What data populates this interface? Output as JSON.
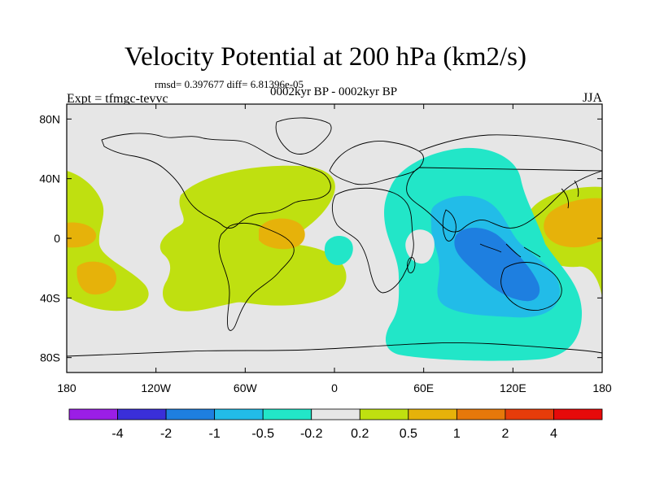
{
  "header": {
    "title": "Velocity Potential at 200 hPa (km2/s)",
    "stats": "rmsd= 0.397677 diff= 6.81396e-05",
    "left_label": "Expt = tfmgc-tevvc",
    "center_label": "0002kyr BP - 0002kyr BP",
    "right_label": "JJA"
  },
  "axes": {
    "x_ticks": [
      "180",
      "120W",
      "60W",
      "0",
      "60E",
      "120E",
      "180"
    ],
    "x_values": [
      -180,
      -120,
      -60,
      0,
      60,
      120,
      180
    ],
    "y_ticks": [
      "80N",
      "40N",
      "0",
      "40S",
      "80S"
    ],
    "y_values": [
      80,
      40,
      0,
      -40,
      -80
    ],
    "lon_range": [
      -180,
      180
    ],
    "lat_range": [
      -90,
      90
    ]
  },
  "colorbar": {
    "labels": [
      "-4",
      "-2",
      "-1",
      "-0.5",
      "-0.2",
      "0.2",
      "0.5",
      "1",
      "2",
      "4"
    ],
    "colors": [
      "#9b1ee6",
      "#3a2fd9",
      "#1e7fe0",
      "#22bce8",
      "#22e6c8",
      "#e6e6e6",
      "#bfe010",
      "#e6b20a",
      "#e6780a",
      "#e63c0a",
      "#e60a0a"
    ]
  },
  "map_colors": {
    "background": "#e6e6e6",
    "pos_02_05": "#bfe010",
    "pos_05_1": "#e6b20a",
    "neg_02_05": "#22e6c8",
    "neg_05_1": "#22bce8",
    "neg_1_2": "#1e7fe0"
  }
}
